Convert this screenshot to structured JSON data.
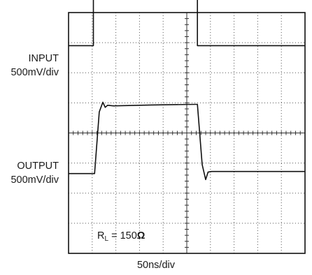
{
  "chart_data": {
    "type": "line",
    "time_scale": "50ns/div",
    "grid": {
      "divisions_x": 10,
      "divisions_y": 8,
      "major_gridlines": "dotted",
      "center_axes": "tick-marked"
    },
    "channels": [
      {
        "name": "INPUT",
        "scale": "500mV/div",
        "x": [
          0,
          1.05,
          1.05,
          5.45,
          5.45,
          10
        ],
        "y": [
          6.9,
          6.9,
          8.58,
          8.58,
          6.9,
          6.9
        ]
      },
      {
        "name": "OUTPUT",
        "scale": "500mV/div",
        "x": [
          0,
          1.1,
          1.3,
          1.45,
          1.55,
          1.65,
          1.9,
          3.5,
          5.4,
          5.45,
          5.65,
          5.8,
          5.9,
          6.05,
          6.3,
          10
        ],
        "y": [
          2.65,
          2.65,
          4.7,
          5.02,
          4.85,
          4.92,
          4.9,
          4.93,
          4.95,
          4.95,
          2.95,
          2.45,
          2.7,
          2.72,
          2.72,
          2.72
        ]
      }
    ],
    "annotation": {
      "prefix": "R",
      "sub": "L",
      "text": " = 150",
      "unit": "Ω"
    }
  }
}
